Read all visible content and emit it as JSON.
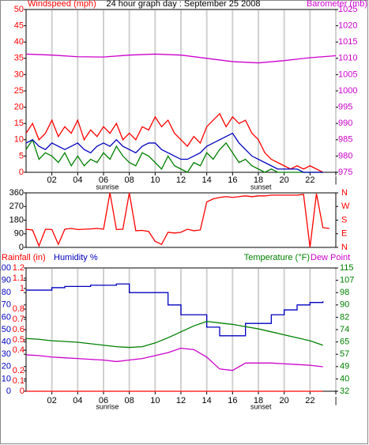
{
  "chart_data": [
    {
      "type": "line",
      "title": "24 hour graph day : September 25 2008",
      "ylabel": "Windspeed (mph)",
      "y2label": "Barometer (mb)",
      "xlim": [
        0,
        24
      ],
      "xticks": [
        {
          "value": 2,
          "label": "02"
        },
        {
          "value": 4,
          "label": "04"
        },
        {
          "value": 6,
          "label": "06"
        },
        {
          "value": 8,
          "label": "08"
        },
        10,
        12,
        14,
        16,
        18,
        20,
        22,
        {
          "value": 24,
          "label": "|"
        }
      ],
      "grid": true,
      "ylim": [
        0,
        50
      ],
      "yticks": [
        0,
        5,
        10,
        15,
        20,
        25,
        30,
        35,
        40,
        45,
        50
      ],
      "ytick_color": "#ff0000",
      "y2lim": [
        975,
        1025
      ],
      "y2ticks": [
        975,
        980,
        985,
        990,
        995,
        1000,
        1005,
        1010,
        1015,
        1020,
        1025
      ],
      "y2tick_color": "#cc00cc",
      "annotations": [
        {
          "text": "sunrise",
          "x": 6.3
        },
        {
          "text": "sunset",
          "x": 18.2
        }
      ],
      "x": [
        0,
        0.5,
        1,
        1.5,
        2,
        2.5,
        3,
        3.5,
        4,
        4.5,
        5,
        5.5,
        6,
        6.5,
        7,
        7.5,
        8,
        8.5,
        9,
        9.5,
        10,
        10.5,
        11,
        11.5,
        12,
        12.5,
        13,
        13.5,
        14,
        14.5,
        15,
        15.5,
        16,
        16.5,
        17,
        17.5,
        18,
        18.5,
        19,
        19.5,
        20,
        20.5,
        21,
        21.5,
        22,
        22.5,
        23,
        23.5,
        24
      ],
      "series": [
        {
          "color": "#ff0000",
          "values": [
            12,
            15,
            10,
            12,
            16,
            11,
            14,
            12,
            16,
            10,
            13,
            11,
            14,
            12,
            15,
            10,
            12,
            10,
            14,
            13,
            17,
            14,
            16,
            12,
            10,
            8,
            11,
            9,
            14,
            16,
            18,
            14,
            17,
            15,
            16,
            12,
            10,
            6,
            4,
            3,
            2,
            1,
            2,
            1,
            2,
            1,
            0,
            null,
            null
          ]
        },
        {
          "color": "#008000",
          "values": [
            7,
            10,
            4,
            6,
            5,
            3,
            6,
            2,
            5,
            2,
            4,
            3,
            6,
            4,
            8,
            5,
            3,
            2,
            6,
            5,
            3,
            1,
            5,
            2,
            1,
            0,
            3,
            2,
            6,
            4,
            7,
            9,
            6,
            3,
            4,
            2,
            1,
            0,
            1,
            0,
            0,
            0,
            0,
            0,
            0,
            0,
            0,
            null,
            null
          ]
        },
        {
          "color": "#0000c0",
          "values": [
            9,
            10,
            8,
            7,
            9,
            8,
            7,
            8,
            9,
            7,
            6,
            8,
            9,
            8,
            10,
            8,
            7,
            6,
            8,
            9,
            9,
            7,
            6,
            5,
            4,
            4,
            5,
            6,
            8,
            9,
            10,
            11,
            12,
            9,
            7,
            5,
            4,
            3,
            2,
            1,
            1,
            1,
            1,
            0,
            0,
            0,
            0,
            null,
            null
          ]
        },
        {
          "color": "#cc00cc",
          "axis": "y2",
          "x": [
            0,
            2,
            4,
            6,
            8,
            10,
            12,
            14,
            16,
            18,
            20,
            22,
            24
          ],
          "values": [
            1011.3,
            1011.0,
            1010.5,
            1010.4,
            1011.0,
            1011.3,
            1011.0,
            1010.0,
            1009.0,
            1008.6,
            1009.3,
            1010.2,
            1010.8
          ]
        }
      ]
    },
    {
      "type": "line",
      "xlim": [
        0,
        24
      ],
      "ylim": [
        0,
        360
      ],
      "yticks": [
        0,
        90,
        180,
        270,
        360
      ],
      "ytick_color": "#000000",
      "y2lim": [
        0,
        360
      ],
      "y2ticks": [
        {
          "value": 0,
          "label": "N"
        },
        {
          "value": 90,
          "label": "E"
        },
        {
          "value": 180,
          "label": "S"
        },
        {
          "value": 270,
          "label": "W"
        },
        {
          "value": 360,
          "label": "N"
        }
      ],
      "y2tick_color": "#ff0000",
      "x": [
        0,
        0.5,
        1,
        1.5,
        2,
        2.5,
        3,
        3.5,
        4,
        4.5,
        5,
        5.5,
        6,
        6.5,
        7,
        7.5,
        8,
        8.5,
        9,
        9.5,
        10,
        10.5,
        11,
        11.5,
        12,
        12.5,
        13,
        13.5,
        14,
        14.5,
        15,
        15.5,
        16,
        16.5,
        17,
        17.5,
        18,
        18.5,
        19,
        19.5,
        20,
        20.5,
        21,
        21.5,
        22,
        22.5,
        23,
        23.5
      ],
      "series": [
        {
          "color": "#ff0000",
          "values": [
            120,
            115,
            10,
            120,
            118,
            20,
            120,
            125,
            118,
            120,
            122,
            125,
            120,
            360,
            118,
            120,
            360,
            110,
            112,
            105,
            40,
            20,
            100,
            95,
            100,
            120,
            110,
            115,
            300,
            320,
            330,
            335,
            330,
            335,
            340,
            335,
            340,
            340,
            345,
            345,
            345,
            345,
            345,
            350,
            0,
            355,
            130,
            125
          ]
        }
      ]
    },
    {
      "type": "line",
      "ylabel": "Humidity %",
      "y2label": "Temperature (°F)",
      "y3label": "Rainfall (in)",
      "xlim": [
        0,
        24
      ],
      "xticks": [
        {
          "value": 2,
          "label": "02"
        },
        {
          "value": 4,
          "label": "04"
        },
        {
          "value": 6,
          "label": "06"
        },
        {
          "value": 8,
          "label": "08"
        },
        10,
        12,
        14,
        16,
        18,
        20,
        22,
        {
          "value": 24,
          "label": "|"
        }
      ],
      "grid": true,
      "ylim": [
        0,
        100
      ],
      "yticks": [
        0,
        10,
        20,
        30,
        40,
        50,
        60,
        70,
        80,
        90,
        100
      ],
      "ytick_color": "#0000c0",
      "y3lim": [
        0,
        1.2
      ],
      "y3ticks": [
        0,
        0.1,
        0.2,
        0.4,
        0.5,
        0.6,
        0.7,
        0.8,
        1,
        1.1,
        1.2
      ],
      "y3tick_color": "#ff0000",
      "y2lim": [
        32,
        115
      ],
      "y2ticks": [
        32,
        {
          "value": 40.3,
          "label": "40"
        },
        {
          "value": 48.6,
          "label": "49"
        },
        {
          "value": 56.9,
          "label": "57"
        },
        {
          "value": 65.2,
          "label": "65"
        },
        {
          "value": 73.5,
          "label": "74"
        },
        {
          "value": 81.8,
          "label": "82"
        },
        {
          "value": 90.1,
          "label": "90"
        },
        {
          "value": 98.4,
          "label": "98"
        },
        {
          "value": 106.7,
          "label": "107"
        },
        115
      ],
      "y2tick_color": "#008000",
      "annotations": [
        {
          "text": "sunrise",
          "x": 6.3
        },
        {
          "text": "sunset",
          "x": 18.2
        }
      ],
      "x": [
        0,
        1,
        2,
        3,
        4,
        5,
        6,
        7,
        8,
        9,
        10,
        11,
        12,
        13,
        14,
        15,
        16,
        17,
        18,
        19,
        20,
        21,
        22,
        23
      ],
      "series": [
        {
          "color": "#ff0000",
          "axis": "y3",
          "values": [
            0,
            0,
            0,
            0,
            0,
            0,
            0,
            0,
            0,
            0,
            0,
            0,
            0,
            0,
            0,
            0,
            0,
            0,
            0,
            0,
            0,
            0,
            0,
            0
          ]
        },
        {
          "color": "#0000c0",
          "step": true,
          "values": [
            82,
            82,
            84,
            85,
            85,
            86,
            86,
            87,
            80,
            80,
            80,
            70,
            62,
            62,
            52,
            45,
            45,
            55,
            55,
            62,
            66,
            70,
            72,
            73
          ]
        },
        {
          "color": "#008000",
          "axis": "y2",
          "values": [
            67.5,
            67,
            66,
            65.5,
            65,
            64,
            63,
            62,
            61.5,
            62,
            64.5,
            68,
            72,
            76,
            79,
            78,
            77,
            75.5,
            74,
            72,
            70,
            68,
            66,
            63
          ]
        },
        {
          "name": "Dew Point",
          "color": "#cc00cc",
          "axis": "y2",
          "values": [
            56.5,
            56,
            55,
            54.5,
            54,
            53.5,
            53,
            52,
            53,
            54,
            56,
            58,
            61,
            60,
            55,
            47,
            46,
            51,
            51,
            51,
            50.5,
            50,
            49.5,
            48.5
          ]
        }
      ]
    }
  ]
}
